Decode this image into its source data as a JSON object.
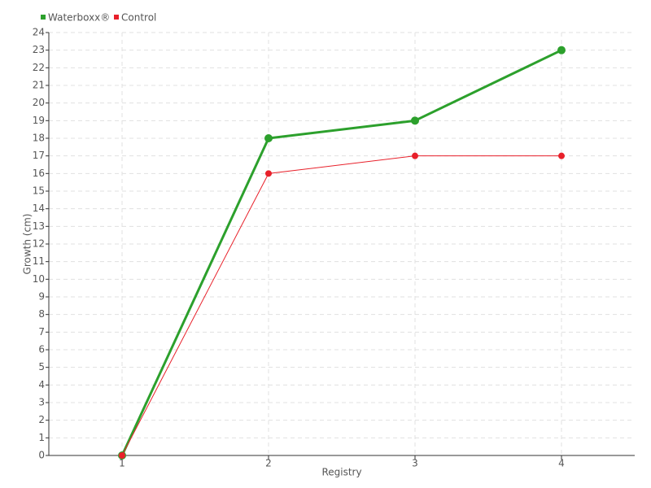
{
  "chart_data": {
    "type": "line",
    "categories": [
      "1",
      "2",
      "3",
      "4"
    ],
    "series": [
      {
        "name": "Waterboxx®",
        "color": "#2ca02c",
        "values": [
          0,
          18,
          19,
          23
        ]
      },
      {
        "name": "Control",
        "color": "#e8202a",
        "values": [
          0,
          16,
          17,
          17
        ]
      }
    ],
    "x_label": "Registry",
    "y_label": "Growth (cm)",
    "ylim": [
      0,
      24
    ],
    "yticks": [
      0,
      1,
      2,
      3,
      4,
      5,
      6,
      7,
      8,
      9,
      10,
      11,
      12,
      13,
      14,
      15,
      16,
      17,
      18,
      19,
      20,
      21,
      22,
      23,
      24
    ],
    "grid": true,
    "legend": "top-left"
  }
}
